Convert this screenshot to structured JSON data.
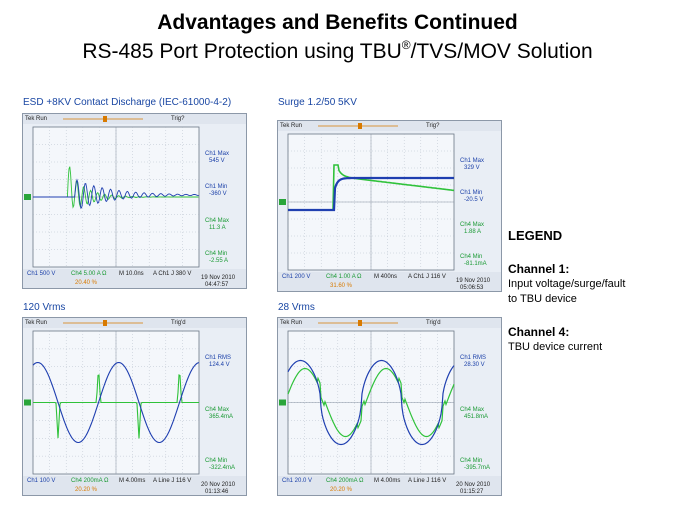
{
  "slide": {
    "title": "Advantages and Benefits Continued",
    "subtitle_main": "RS-485 Port Protection using TBU",
    "subtitle_reg": "®",
    "subtitle_tail": "/TVS/MOV Solution"
  },
  "panels": [
    {
      "caption": "ESD +8KV Contact Discharge (IEC-61000-4-2)",
      "header": {
        "left": "Tek Run",
        "right": "Trig?"
      },
      "readouts": [
        {
          "label": "Ch1 Max",
          "value": "545 V",
          "color": "blue"
        },
        {
          "label": "Ch1 Min",
          "value": "-360 V",
          "color": "blue"
        },
        {
          "label": "Ch4 Max",
          "value": "11.3 A",
          "color": "green"
        },
        {
          "label": "Ch4 Min",
          "value": "-2.55 A",
          "color": "green"
        }
      ],
      "bottom": {
        "ch1": "Ch1  500 V",
        "ch4": "Ch4  5.00 A Ω",
        "time": "M 10.0ns",
        "trig": "A  Ch1  J  380 V",
        "pct": "20.40 %",
        "date": "19 Nov 2010",
        "clock": "04:47:57"
      }
    },
    {
      "caption": "Surge 1.2/50 5KV",
      "header": {
        "left": "Tek Run",
        "right": "Trig?"
      },
      "readouts": [
        {
          "label": "Ch1 Max",
          "value": "329 V",
          "color": "blue"
        },
        {
          "label": "Ch1 Min",
          "value": "-20.5 V",
          "color": "blue"
        },
        {
          "label": "Ch4 Max",
          "value": "1.88 A",
          "color": "green"
        },
        {
          "label": "Ch4 Min",
          "value": "-81.1mA",
          "color": "green"
        }
      ],
      "bottom": {
        "ch1": "Ch1  200 V",
        "ch4": "Ch4  1.00 A Ω",
        "time": "M 400ns",
        "trig": "A  Ch1  J  116 V",
        "pct": "31.60 %",
        "date": "19 Nov 2010",
        "clock": "05:06:53"
      }
    },
    {
      "caption": "120 Vrms",
      "header": {
        "left": "Tek Run",
        "right": "Trig'd"
      },
      "readouts": [
        {
          "label": "Ch1 RMS",
          "value": "124.4 V",
          "color": "blue"
        },
        {
          "label": "Ch4 Max",
          "value": "365.4mA",
          "color": "green"
        },
        {
          "label": "Ch4 Min",
          "value": "-322.4mA",
          "color": "green"
        }
      ],
      "bottom": {
        "ch1": "Ch1  100 V",
        "ch4": "Ch4  200mA Ω",
        "time": "M 4.00ms",
        "trig": "A  Line  J  116 V",
        "pct": "20.20 %",
        "date": "20 Nov 2010",
        "clock": "01:13:46"
      }
    },
    {
      "caption": "28 Vrms",
      "header": {
        "left": "Tek Run",
        "right": "Trig'd"
      },
      "readouts": [
        {
          "label": "Ch1 RMS",
          "value": "28.30 V",
          "color": "blue"
        },
        {
          "label": "Ch4 Max",
          "value": "451.8mA",
          "color": "green"
        },
        {
          "label": "Ch4 Min",
          "value": "-395.7mA",
          "color": "green"
        }
      ],
      "bottom": {
        "ch1": "Ch1  20.0 V",
        "ch4": "Ch4  200mA Ω",
        "time": "M 4.00ms",
        "trig": "A  Line  J  116 V",
        "pct": "20.20 %",
        "date": "20 Nov 2010",
        "clock": "01:15:27"
      }
    }
  ],
  "legend": {
    "heading": "LEGEND",
    "ch1_title": "Channel 1:",
    "ch1_line1": "Input voltage/surge/fault",
    "ch1_line2": "to TBU device",
    "ch4_title": "Channel 4:",
    "ch4_line1": "TBU device current"
  },
  "colors": {
    "ch1": "#1f3fb0",
    "ch4": "#2fc23a",
    "grid": "#a9b4c2",
    "screen": "#e9eef5",
    "caption": "#1a47a3"
  }
}
